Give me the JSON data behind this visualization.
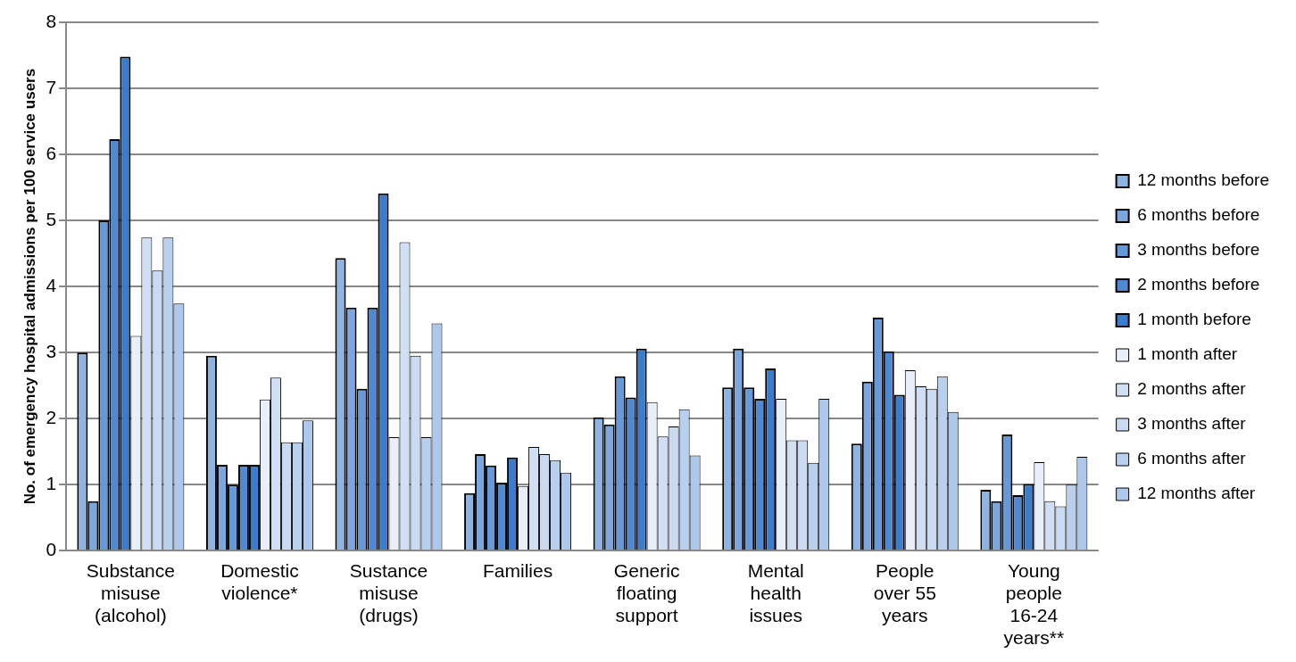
{
  "chart_data": {
    "type": "bar",
    "ylabel": "No. of emergency hospital admissions per 100 service users",
    "categories": [
      "Substance misuse (alcohol)",
      "Domestic violence*",
      "Sustance misuse (drugs)",
      "Families",
      "Generic floating support",
      "Mental health issues",
      "People over 55 years",
      "Young people 16-24 years**"
    ],
    "series": [
      {
        "name": "12 months before",
        "color": "#8eb4e3",
        "values": [
          3.0,
          2.95,
          4.43,
          0.87,
          2.02,
          2.47,
          1.62,
          0.92
        ]
      },
      {
        "name": "6 months before",
        "color": "#7ba7de",
        "values": [
          0.75,
          1.3,
          3.68,
          1.46,
          1.91,
          3.06,
          2.56,
          0.75
        ]
      },
      {
        "name": "3 months before",
        "color": "#6699d9",
        "values": [
          5.0,
          1.0,
          2.45,
          1.29,
          2.64,
          2.47,
          3.53,
          1.76
        ]
      },
      {
        "name": "2 months before",
        "color": "#4f88d3",
        "values": [
          6.23,
          1.3,
          3.68,
          1.03,
          2.32,
          2.3,
          3.02,
          0.84
        ]
      },
      {
        "name": "1 month before",
        "color": "#3a7dcf",
        "values": [
          7.48,
          1.3,
          5.41,
          1.41,
          3.06,
          2.76,
          2.36,
          1.01
        ]
      },
      {
        "name": "1 month after",
        "color": "#e8eff9",
        "values": [
          3.25,
          2.29,
          1.72,
          0.98,
          2.25,
          2.3,
          2.73,
          1.34
        ]
      },
      {
        "name": "2 months after",
        "color": "#d0dff3",
        "values": [
          4.74,
          2.62,
          4.67,
          1.57,
          1.73,
          1.67,
          2.49,
          0.75
        ]
      },
      {
        "name": "3 months after",
        "color": "#c9daf2",
        "values": [
          4.24,
          1.64,
          2.95,
          1.46,
          1.88,
          1.67,
          2.45,
          0.67
        ]
      },
      {
        "name": "6 months after",
        "color": "#b8d0ee",
        "values": [
          4.74,
          1.64,
          1.72,
          1.37,
          2.14,
          1.33,
          2.64,
          1.0
        ]
      },
      {
        "name": "12 months after",
        "color": "#adc8ec",
        "values": [
          3.74,
          1.97,
          3.44,
          1.18,
          1.44,
          2.3,
          2.1,
          1.42
        ]
      }
    ],
    "ylim": [
      0,
      8
    ],
    "yticks": [
      0,
      1,
      2,
      3,
      4,
      5,
      6,
      7,
      8
    ],
    "grid": "y",
    "legend": "right"
  }
}
